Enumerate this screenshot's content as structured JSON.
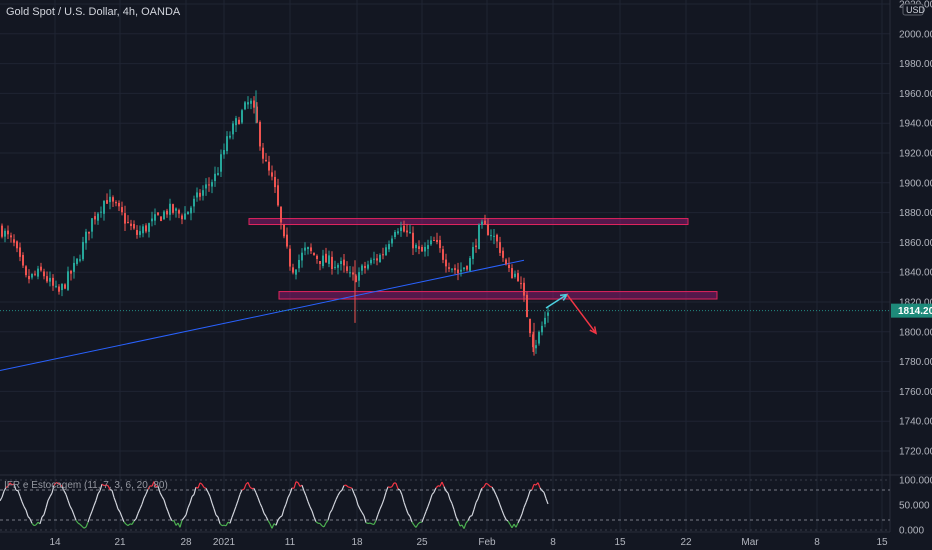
{
  "header": {
    "title": "Gold Spot / U.S. Dollar, 4h, OANDA",
    "currency_badge": "USD",
    "indicator_label": "IFR e Estocagem (11, 7, 3, 6, 20, 80)"
  },
  "price_axis": {
    "ticks": [
      "2020.000",
      "2000.000",
      "1980.000",
      "1960.000",
      "1940.000",
      "1920.000",
      "1900.000",
      "1880.000",
      "1860.000",
      "1840.000",
      "1820.000",
      "1800.000",
      "1780.000",
      "1760.000",
      "1740.000",
      "1720.000"
    ],
    "current_price_label": "1814.200"
  },
  "indicator_axis": {
    "ticks": [
      "100.000",
      "50.000",
      "0.000"
    ]
  },
  "time_axis": {
    "ticks": [
      "14",
      "21",
      "28",
      "2021",
      "11",
      "18",
      "25",
      "Feb",
      "8",
      "15",
      "22",
      "Mar",
      "8",
      "15"
    ]
  },
  "colors": {
    "background": "#131722",
    "up_candle": "#26a69a",
    "down_candle": "#ef5350",
    "zone_fill": "#8b1a6e",
    "zone_border": "#e0245e",
    "trendline": "#2962ff",
    "up_arrow": "#4dd0e1",
    "down_arrow": "#f23645",
    "price_badge": "#1e8a7a",
    "stoch_line": "#d1d4dc",
    "overbought": "#f23645",
    "oversold": "#4caf50"
  },
  "chart_data": {
    "type": "candlestick",
    "timeframe": "4h",
    "x_tick_labels": [
      "14",
      "21",
      "28",
      "2021",
      "11",
      "18",
      "25",
      "Feb",
      "8",
      "15",
      "22",
      "Mar",
      "8",
      "15"
    ],
    "ylim": [
      1710,
      2022
    ],
    "last_price": 1814.2,
    "close_path": [
      [
        0,
        1870
      ],
      [
        14,
        1858
      ],
      [
        26,
        1835
      ],
      [
        42,
        1840
      ],
      [
        58,
        1825
      ],
      [
        76,
        1845
      ],
      [
        92,
        1875
      ],
      [
        106,
        1890
      ],
      [
        120,
        1880
      ],
      [
        136,
        1865
      ],
      [
        150,
        1872
      ],
      [
        168,
        1882
      ],
      [
        184,
        1878
      ],
      [
        200,
        1892
      ],
      [
        216,
        1905
      ],
      [
        228,
        1930
      ],
      [
        240,
        1945
      ],
      [
        250,
        1955
      ],
      [
        256,
        1942
      ],
      [
        264,
        1915
      ],
      [
        274,
        1898
      ],
      [
        284,
        1860
      ],
      [
        292,
        1842
      ],
      [
        306,
        1855
      ],
      [
        322,
        1848
      ],
      [
        340,
        1845
      ],
      [
        352,
        1835
      ],
      [
        368,
        1845
      ],
      [
        382,
        1852
      ],
      [
        396,
        1872
      ],
      [
        408,
        1865
      ],
      [
        420,
        1852
      ],
      [
        434,
        1860
      ],
      [
        446,
        1848
      ],
      [
        458,
        1840
      ],
      [
        470,
        1848
      ],
      [
        480,
        1870
      ],
      [
        490,
        1868
      ],
      [
        500,
        1856
      ],
      [
        508,
        1840
      ],
      [
        518,
        1838
      ],
      [
        526,
        1815
      ],
      [
        534,
        1790
      ],
      [
        540,
        1800
      ],
      [
        548,
        1814.2
      ]
    ],
    "resistance_zone": {
      "low": 1872,
      "high": 1876,
      "x_range": [
        249,
        688
      ]
    },
    "support_zone": {
      "low": 1822,
      "high": 1827,
      "x_range": [
        279,
        717
      ]
    },
    "trendline": {
      "from": [
        0,
        1774
      ],
      "to": [
        524,
        1848
      ]
    },
    "projection_up": {
      "from": [
        546,
        1816
      ],
      "to": [
        567,
        1825
      ]
    },
    "projection_down": {
      "from": [
        567,
        1825
      ],
      "to": [
        596,
        1799
      ]
    },
    "indicator": {
      "name": "IFR e Estocagem (11, 7, 3, 6, 20, 80)",
      "levels": [
        80,
        20
      ],
      "ylim": [
        0,
        100
      ]
    }
  }
}
